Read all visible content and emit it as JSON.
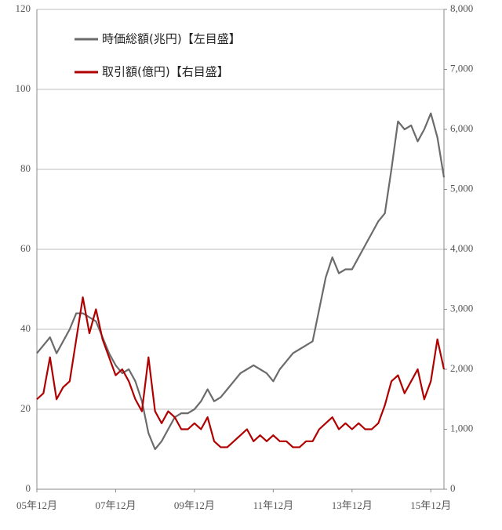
{
  "chart_data": {
    "type": "line",
    "categories": [
      "05年12月",
      null,
      null,
      null,
      null,
      null,
      null,
      null,
      null,
      null,
      null,
      null,
      "07年12月",
      null,
      null,
      null,
      null,
      null,
      null,
      null,
      null,
      null,
      null,
      null,
      "09年12月",
      null,
      null,
      null,
      null,
      null,
      null,
      null,
      null,
      null,
      null,
      null,
      "11年12月",
      null,
      null,
      null,
      null,
      null,
      null,
      null,
      null,
      null,
      null,
      null,
      "13年12月",
      null,
      null,
      null,
      null,
      null,
      null,
      null,
      null,
      null,
      null,
      null,
      "15年12月",
      null,
      null
    ],
    "series": [
      {
        "name": "時価総額(兆円)【左目盛】",
        "color": "#6b6b6b",
        "axis": "y",
        "values": [
          34,
          36,
          38,
          34,
          37,
          40,
          44,
          44,
          43,
          42,
          38,
          34,
          31,
          29,
          30,
          27,
          22,
          14,
          10,
          12,
          15,
          18,
          19,
          19,
          20,
          22,
          25,
          22,
          23,
          25,
          27,
          29,
          30,
          31,
          30,
          29,
          27,
          30,
          32,
          34,
          35,
          36,
          37,
          45,
          53,
          58,
          54,
          55,
          55,
          58,
          61,
          64,
          67,
          69,
          80,
          92,
          90,
          91,
          87,
          90,
          94,
          88,
          78
        ]
      },
      {
        "name": "取引額(億円)【右目盛】",
        "color": "#b00000",
        "axis": "y2",
        "values": [
          1500,
          1600,
          2200,
          1500,
          1700,
          1800,
          2500,
          3200,
          2600,
          3000,
          2500,
          2200,
          1900,
          2000,
          1800,
          1500,
          1300,
          2200,
          1300,
          1100,
          1300,
          1200,
          1000,
          1000,
          1100,
          1000,
          1200,
          800,
          700,
          700,
          800,
          900,
          1000,
          800,
          900,
          800,
          900,
          800,
          800,
          700,
          700,
          800,
          800,
          1000,
          1100,
          1200,
          1000,
          1100,
          1000,
          1100,
          1000,
          1000,
          1100,
          1400,
          1800,
          1900,
          1600,
          1800,
          2000,
          1500,
          1800,
          2500,
          2000
        ]
      }
    ],
    "ylim": [
      0,
      120
    ],
    "yticks": [
      0,
      20,
      40,
      60,
      80,
      100,
      120
    ],
    "y2lim": [
      0,
      8000
    ],
    "y2ticks": [
      0,
      {
        "value": 1000,
        "label": "1,000"
      },
      {
        "value": 2000,
        "label": "2,000"
      },
      {
        "value": 3000,
        "label": "3,000"
      },
      {
        "value": 4000,
        "label": "4,000"
      },
      {
        "value": 5000,
        "label": "5,000"
      },
      {
        "value": 6000,
        "label": "6,000"
      },
      {
        "value": 7000,
        "label": "7,000"
      },
      {
        "value": 8000,
        "label": "8,000"
      }
    ],
    "grid": true
  }
}
